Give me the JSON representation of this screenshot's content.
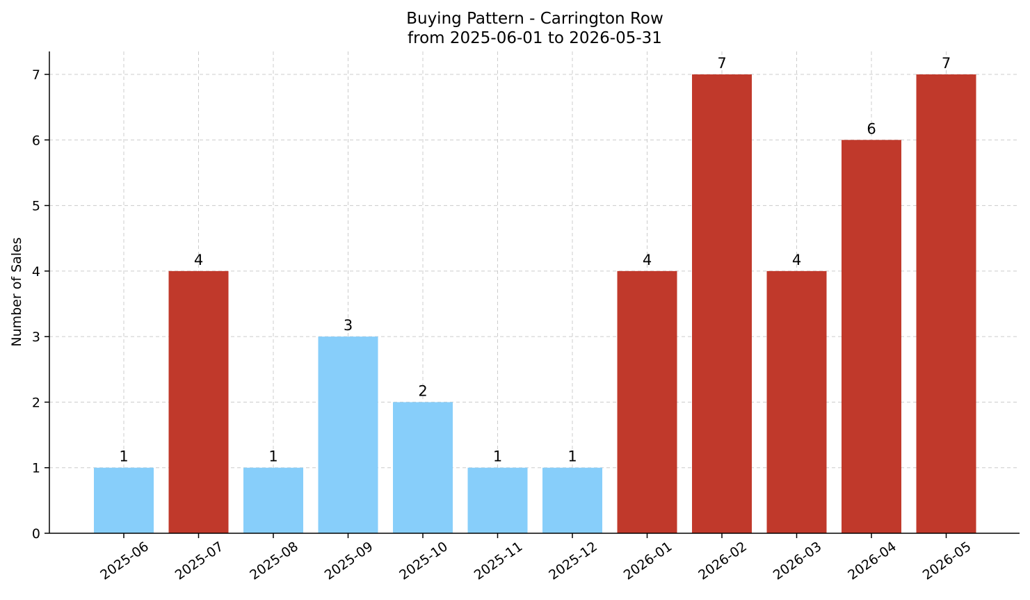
{
  "chart_data": {
    "type": "bar",
    "title": "Buying Pattern - Carrington Row",
    "subtitle": "from 2025-06-01 to 2026-05-31",
    "xlabel": "",
    "ylabel": "Number of Sales",
    "ylim": [
      0,
      7.35
    ],
    "yticks": [
      "0",
      "1",
      "2",
      "3",
      "4",
      "5",
      "6",
      "7"
    ],
    "grid": true,
    "categories": [
      "2025-06",
      "2025-07",
      "2025-08",
      "2025-09",
      "2025-10",
      "2025-11",
      "2025-12",
      "2026-01",
      "2026-02",
      "2026-03",
      "2026-04",
      "2026-05"
    ],
    "values": [
      1,
      4,
      1,
      3,
      2,
      1,
      1,
      4,
      7,
      4,
      6,
      7
    ],
    "bar_colors": [
      "#87CEFA",
      "#C0392B",
      "#87CEFA",
      "#87CEFA",
      "#87CEFA",
      "#87CEFA",
      "#87CEFA",
      "#C0392B",
      "#C0392B",
      "#C0392B",
      "#C0392B",
      "#C0392B"
    ],
    "data_labels": [
      "1",
      "4",
      "1",
      "3",
      "2",
      "1",
      "1",
      "4",
      "7",
      "4",
      "6",
      "7"
    ]
  }
}
